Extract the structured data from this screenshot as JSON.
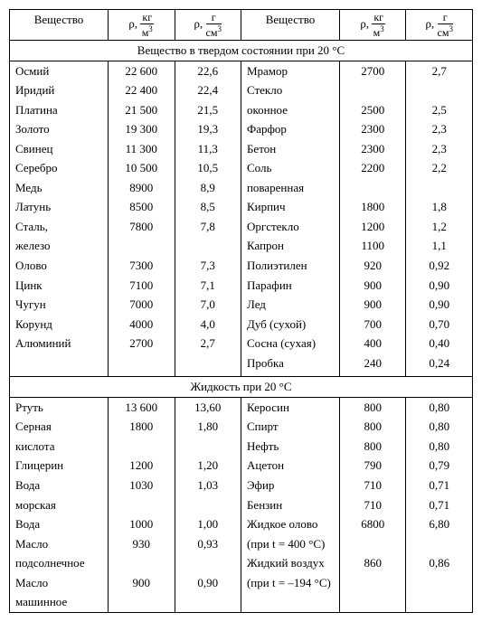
{
  "headers": {
    "substance": "Вещество",
    "rho_kg_m3_prefix": "ρ, ",
    "rho_kg_m3_num": "кг",
    "rho_kg_m3_den": "м",
    "rho_g_cm3_prefix": "ρ, ",
    "rho_g_cm3_num": "г",
    "rho_g_cm3_den": "см"
  },
  "sections": [
    {
      "title": "Вещество в твердом состоянии при 20 °С",
      "left": [
        {
          "name": "Осмий",
          "kg": "22 600",
          "g": "22,6"
        },
        {
          "name": "Иридий",
          "kg": "22 400",
          "g": "22,4"
        },
        {
          "name": "Платина",
          "kg": "21 500",
          "g": "21,5"
        },
        {
          "name": "Золото",
          "kg": "19 300",
          "g": "19,3"
        },
        {
          "name": "Свинец",
          "kg": "11 300",
          "g": "11,3"
        },
        {
          "name": "Серебро",
          "kg": "10 500",
          "g": "10,5"
        },
        {
          "name": "Медь",
          "kg": "8900",
          "g": "8,9"
        },
        {
          "name": "Латунь",
          "kg": "8500",
          "g": "8,5"
        },
        {
          "name": "Сталь,",
          "kg": "7800",
          "g": "7,8"
        },
        {
          "name": "железо",
          "kg": "",
          "g": ""
        },
        {
          "name": "Олово",
          "kg": "7300",
          "g": "7,3"
        },
        {
          "name": "Цинк",
          "kg": "7100",
          "g": "7,1"
        },
        {
          "name": "Чугун",
          "kg": "7000",
          "g": "7,0"
        },
        {
          "name": "Корунд",
          "kg": "4000",
          "g": "4,0"
        },
        {
          "name": "Алюминий",
          "kg": "2700",
          "g": "2,7"
        },
        {
          "name": "",
          "kg": "",
          "g": ""
        },
        {
          "name": "",
          "kg": "",
          "g": ""
        }
      ],
      "right": [
        {
          "name": "Мрамор",
          "kg": "2700",
          "g": "2,7"
        },
        {
          "name": "Стекло",
          "kg": "",
          "g": ""
        },
        {
          "name": "оконное",
          "kg": "2500",
          "g": "2,5"
        },
        {
          "name": "Фарфор",
          "kg": "2300",
          "g": "2,3"
        },
        {
          "name": "Бетон",
          "kg": "2300",
          "g": "2,3"
        },
        {
          "name": "Соль",
          "kg": "2200",
          "g": "2,2"
        },
        {
          "name": "поваренная",
          "kg": "",
          "g": ""
        },
        {
          "name": "Кирпич",
          "kg": "1800",
          "g": "1,8"
        },
        {
          "name": "Оргстекло",
          "kg": "1200",
          "g": "1,2"
        },
        {
          "name": "Капрон",
          "kg": "1100",
          "g": "1,1"
        },
        {
          "name": "Полиэтилен",
          "kg": "920",
          "g": "0,92"
        },
        {
          "name": "Парафин",
          "kg": "900",
          "g": "0,90"
        },
        {
          "name": "Лед",
          "kg": "900",
          "g": "0,90"
        },
        {
          "name": "Дуб (сухой)",
          "kg": "700",
          "g": "0,70"
        },
        {
          "name": "Сосна (сухая)",
          "kg": "400",
          "g": "0,40"
        },
        {
          "name": "Пробка",
          "kg": "240",
          "g": "0,24"
        },
        {
          "name": "",
          "kg": "",
          "g": ""
        }
      ]
    },
    {
      "title": "Жидкость при 20 °С",
      "left": [
        {
          "name": "Ртуть",
          "kg": "13 600",
          "g": "13,60"
        },
        {
          "name": "Серная",
          "kg": "1800",
          "g": "1,80"
        },
        {
          "name": "кислота",
          "kg": "",
          "g": ""
        },
        {
          "name": "Глицерин",
          "kg": "1200",
          "g": "1,20"
        },
        {
          "name": "Вода",
          "kg": "1030",
          "g": "1,03"
        },
        {
          "name": "морская",
          "kg": "",
          "g": ""
        },
        {
          "name": "Вода",
          "kg": "1000",
          "g": "1,00"
        },
        {
          "name": "Масло",
          "kg": "930",
          "g": "0,93"
        },
        {
          "name": "подсолнечное",
          "kg": "",
          "g": ""
        },
        {
          "name": "Масло",
          "kg": "900",
          "g": "0,90"
        },
        {
          "name": "машинное",
          "kg": "",
          "g": ""
        }
      ],
      "right": [
        {
          "name": "Керосин",
          "kg": "800",
          "g": "0,80"
        },
        {
          "name": "Спирт",
          "kg": "800",
          "g": "0,80"
        },
        {
          "name": "Нефть",
          "kg": "800",
          "g": "0,80"
        },
        {
          "name": "Ацетон",
          "kg": "790",
          "g": "0,79"
        },
        {
          "name": "Эфир",
          "kg": "710",
          "g": "0,71"
        },
        {
          "name": "Бензин",
          "kg": "710",
          "g": "0,71"
        },
        {
          "name": "Жидкое олово",
          "kg": "6800",
          "g": "6,80"
        },
        {
          "name": "(при t = 400 °С)",
          "kg": "",
          "g": ""
        },
        {
          "name": "Жидкий воздух",
          "kg": "860",
          "g": "0,86"
        },
        {
          "name": "(при t = –194 °С)",
          "kg": "",
          "g": ""
        },
        {
          "name": "",
          "kg": "",
          "g": ""
        }
      ]
    }
  ]
}
